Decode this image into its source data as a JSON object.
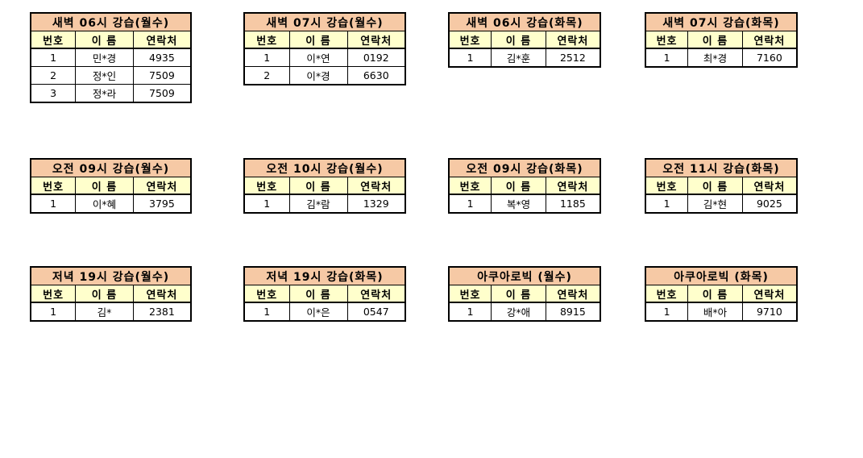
{
  "document": {
    "kind": "class-roster-sheet",
    "background_color": "#ffffff"
  },
  "colors": {
    "table_title_bg": "#f6c9a5",
    "column_header_bg": "#ffffcc",
    "cell_bg": "#ffffff",
    "border": "#000000",
    "text": "#000000"
  },
  "columns": [
    "번호",
    "이 름",
    "연락처"
  ],
  "tables": [
    {
      "title": "새벽 06시 강습(월수)",
      "rows": [
        [
          "1",
          "민*경",
          "4935"
        ],
        [
          "2",
          "정*인",
          "7509"
        ],
        [
          "3",
          "정*라",
          "7509"
        ]
      ]
    },
    {
      "title": "새벽 07시 강습(월수)",
      "rows": [
        [
          "1",
          "이*연",
          "0192"
        ],
        [
          "2",
          "이*경",
          "6630"
        ]
      ]
    },
    {
      "title": "새벽 06시 강습(화목)",
      "rows": [
        [
          "1",
          "김*훈",
          "2512"
        ]
      ]
    },
    {
      "title": "새벽 07시 강습(화목)",
      "rows": [
        [
          "1",
          "최*경",
          "7160"
        ]
      ]
    },
    {
      "title": "오전 09시 강습(월수)",
      "rows": [
        [
          "1",
          "이*혜",
          "3795"
        ]
      ]
    },
    {
      "title": "오전 10시 강습(월수)",
      "rows": [
        [
          "1",
          "김*람",
          "1329"
        ]
      ]
    },
    {
      "title": "오전 09시 강습(화목)",
      "rows": [
        [
          "1",
          "복*영",
          "1185"
        ]
      ]
    },
    {
      "title": "오전 11시 강습(화목)",
      "rows": [
        [
          "1",
          "김*현",
          "9025"
        ]
      ]
    },
    {
      "title": "저녁 19시 강습(월수)",
      "rows": [
        [
          "1",
          "김*",
          "2381"
        ]
      ]
    },
    {
      "title": "저녁 19시 강습(화목)",
      "rows": [
        [
          "1",
          "이*은",
          "0547"
        ]
      ]
    },
    {
      "title": "아쿠아로빅 (월수)",
      "rows": [
        [
          "1",
          "강*애",
          "8915"
        ]
      ]
    },
    {
      "title": "아쿠아로빅 (화목)",
      "rows": [
        [
          "1",
          "배*아",
          "9710"
        ]
      ]
    }
  ]
}
